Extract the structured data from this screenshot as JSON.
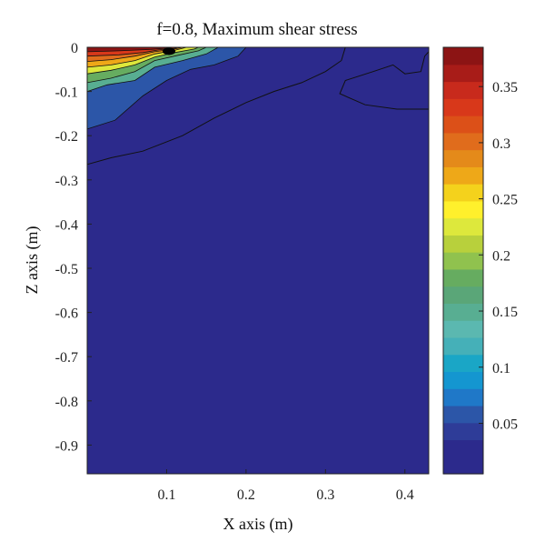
{
  "chart_data": {
    "type": "contour",
    "title": "f=0.8, Maximum shear stress",
    "xlabel": "X axis (m)",
    "ylabel": "Z axis (m)",
    "xlim": [
      0,
      0.43
    ],
    "ylim": [
      -0.965,
      0
    ],
    "x_ticks": [
      0.1,
      0.2,
      0.3,
      0.4
    ],
    "y_ticks": [
      0,
      -0.1,
      -0.2,
      -0.3,
      -0.4,
      -0.5,
      -0.6,
      -0.7,
      -0.8,
      -0.9
    ],
    "colorbar": {
      "range": [
        0.005,
        0.385
      ],
      "ticks": [
        0.05,
        0.1,
        0.15,
        0.2,
        0.25,
        0.3,
        0.35
      ],
      "colors": [
        "#2c2a8c",
        "#2c2a8c",
        "#2e3c98",
        "#2c56a8",
        "#1f78c8",
        "#1496d0",
        "#1aa6c6",
        "#45b0b8",
        "#5bb8b0",
        "#58ae92",
        "#5aa678",
        "#66ac60",
        "#90c24e",
        "#b8d03c",
        "#dde83c",
        "#fff02c",
        "#f4d21c",
        "#eea818",
        "#e48a1a",
        "#e06c1c",
        "#dc5018",
        "#d8381a",
        "#c82a1c",
        "#a81c18",
        "#8c1414"
      ]
    },
    "regions": [
      {
        "level": 0.06,
        "points": [
          [
            0,
            -0.185
          ],
          [
            0.035,
            -0.165
          ],
          [
            0.07,
            -0.11
          ],
          [
            0.1,
            -0.075
          ],
          [
            0.13,
            -0.05
          ],
          [
            0.16,
            -0.04
          ],
          [
            0.19,
            -0.02
          ],
          [
            0.2,
            0
          ],
          [
            0,
            0
          ]
        ]
      },
      {
        "level": 0.145,
        "points": [
          [
            0,
            -0.1
          ],
          [
            0.025,
            -0.085
          ],
          [
            0.06,
            -0.075
          ],
          [
            0.085,
            -0.045
          ],
          [
            0.12,
            -0.03
          ],
          [
            0.15,
            -0.015
          ],
          [
            0.165,
            0
          ],
          [
            0,
            0
          ]
        ]
      },
      {
        "level": 0.18,
        "points": [
          [
            0,
            -0.08
          ],
          [
            0.03,
            -0.07
          ],
          [
            0.06,
            -0.055
          ],
          [
            0.085,
            -0.03
          ],
          [
            0.115,
            -0.018
          ],
          [
            0.14,
            -0.008
          ],
          [
            0.15,
            0
          ],
          [
            0,
            0
          ]
        ]
      },
      {
        "level": 0.22,
        "points": [
          [
            0,
            -0.06
          ],
          [
            0.03,
            -0.052
          ],
          [
            0.06,
            -0.04
          ],
          [
            0.085,
            -0.022
          ],
          [
            0.11,
            -0.012
          ],
          [
            0.135,
            -0.004
          ],
          [
            0.14,
            0
          ],
          [
            0,
            0
          ]
        ]
      },
      {
        "level": 0.265,
        "points": [
          [
            0,
            -0.045
          ],
          [
            0.03,
            -0.04
          ],
          [
            0.06,
            -0.03
          ],
          [
            0.085,
            -0.015
          ],
          [
            0.11,
            -0.007
          ],
          [
            0.125,
            0
          ],
          [
            0,
            0
          ]
        ]
      },
      {
        "level": 0.3,
        "points": [
          [
            0,
            -0.032
          ],
          [
            0.03,
            -0.028
          ],
          [
            0.06,
            -0.02
          ],
          [
            0.085,
            -0.01
          ],
          [
            0.11,
            -0.004
          ],
          [
            0.12,
            0
          ],
          [
            0,
            0
          ]
        ]
      },
      {
        "level": 0.335,
        "points": [
          [
            0,
            -0.02
          ],
          [
            0.04,
            -0.017
          ],
          [
            0.07,
            -0.012
          ],
          [
            0.09,
            -0.006
          ],
          [
            0.11,
            -0.002
          ],
          [
            0.115,
            0
          ],
          [
            0,
            0
          ]
        ]
      },
      {
        "level": 0.37,
        "points": [
          [
            0,
            -0.01
          ],
          [
            0.04,
            -0.008
          ],
          [
            0.08,
            -0.005
          ],
          [
            0.1,
            -0.002
          ],
          [
            0.11,
            0
          ],
          [
            0,
            0
          ]
        ]
      }
    ],
    "contour_lines": [
      {
        "points": [
          [
            0,
            -0.265
          ],
          [
            0.03,
            -0.25
          ],
          [
            0.07,
            -0.235
          ],
          [
            0.12,
            -0.2
          ],
          [
            0.16,
            -0.16
          ],
          [
            0.2,
            -0.125
          ],
          [
            0.235,
            -0.1
          ],
          [
            0.27,
            -0.08
          ],
          [
            0.3,
            -0.055
          ],
          [
            0.32,
            -0.03
          ],
          [
            0.325,
            0
          ]
        ]
      },
      {
        "points": [
          [
            0.43,
            -0.14
          ],
          [
            0.39,
            -0.14
          ],
          [
            0.35,
            -0.13
          ],
          [
            0.318,
            -0.105
          ],
          [
            0.325,
            -0.075
          ],
          [
            0.36,
            -0.055
          ],
          [
            0.385,
            -0.04
          ],
          [
            0.4,
            -0.06
          ],
          [
            0.42,
            -0.055
          ],
          [
            0.425,
            -0.02
          ],
          [
            0.43,
            -0.01
          ]
        ]
      }
    ],
    "peak": {
      "x": 0.103,
      "z": -0.003
    }
  }
}
